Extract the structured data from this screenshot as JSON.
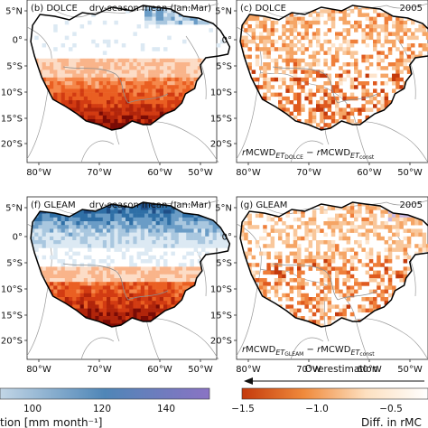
{
  "panels": [
    {
      "id": "b",
      "label": "(b) DOLCE",
      "right_title": "dry-season mean (Jan:Mar)",
      "formula": null,
      "mode": "mean_dolce"
    },
    {
      "id": "c",
      "label": "(c) DOLCE",
      "right_title": "2005",
      "formula": {
        "lhs_sub": "DOLCE",
        "rhs_sub": "const"
      },
      "mode": "diff_dolce"
    },
    {
      "id": "f",
      "label": "(f) GLEAM",
      "right_title": "dry-season mean (Jan:Mar)",
      "formula": null,
      "mode": "mean_gleam"
    },
    {
      "id": "g",
      "label": "(g) GLEAM",
      "right_title": "2005",
      "formula": {
        "lhs_sub": "GLEAM",
        "rhs_sub": "const"
      },
      "mode": "diff_gleam"
    }
  ],
  "axes": {
    "lat_ticks": [
      "5°N",
      "0°",
      "5°S",
      "10°S",
      "15°S",
      "20°S"
    ],
    "lon_ticks": [
      "80°W",
      "70°W",
      "60°W",
      "50°W"
    ]
  },
  "formula_text": {
    "base": "MCWD",
    "r": "r",
    "et": "ET",
    "minus": "−"
  },
  "colorbar_left": {
    "ticks": [
      "100",
      "120",
      "140"
    ],
    "label": "tion [mm month⁻¹]",
    "colors": [
      "#c2d6e6",
      "#4f86b7",
      "#8a73c4"
    ]
  },
  "colorbar_right": {
    "ticks": [
      "−1.5",
      "−1.0",
      "−0.5"
    ],
    "label": "Diff. in rMC",
    "annotation": "Overestimation",
    "colors": [
      "#c43a0c",
      "#f08a3c",
      "#fde0c0",
      "#ffffff"
    ]
  },
  "colors": {
    "ocean": "#ffffff",
    "basin_outline": "#000000",
    "country_border": "#9a9a9a",
    "dry_red": "#d23b12",
    "wet_blue": "#2f6fa6"
  }
}
